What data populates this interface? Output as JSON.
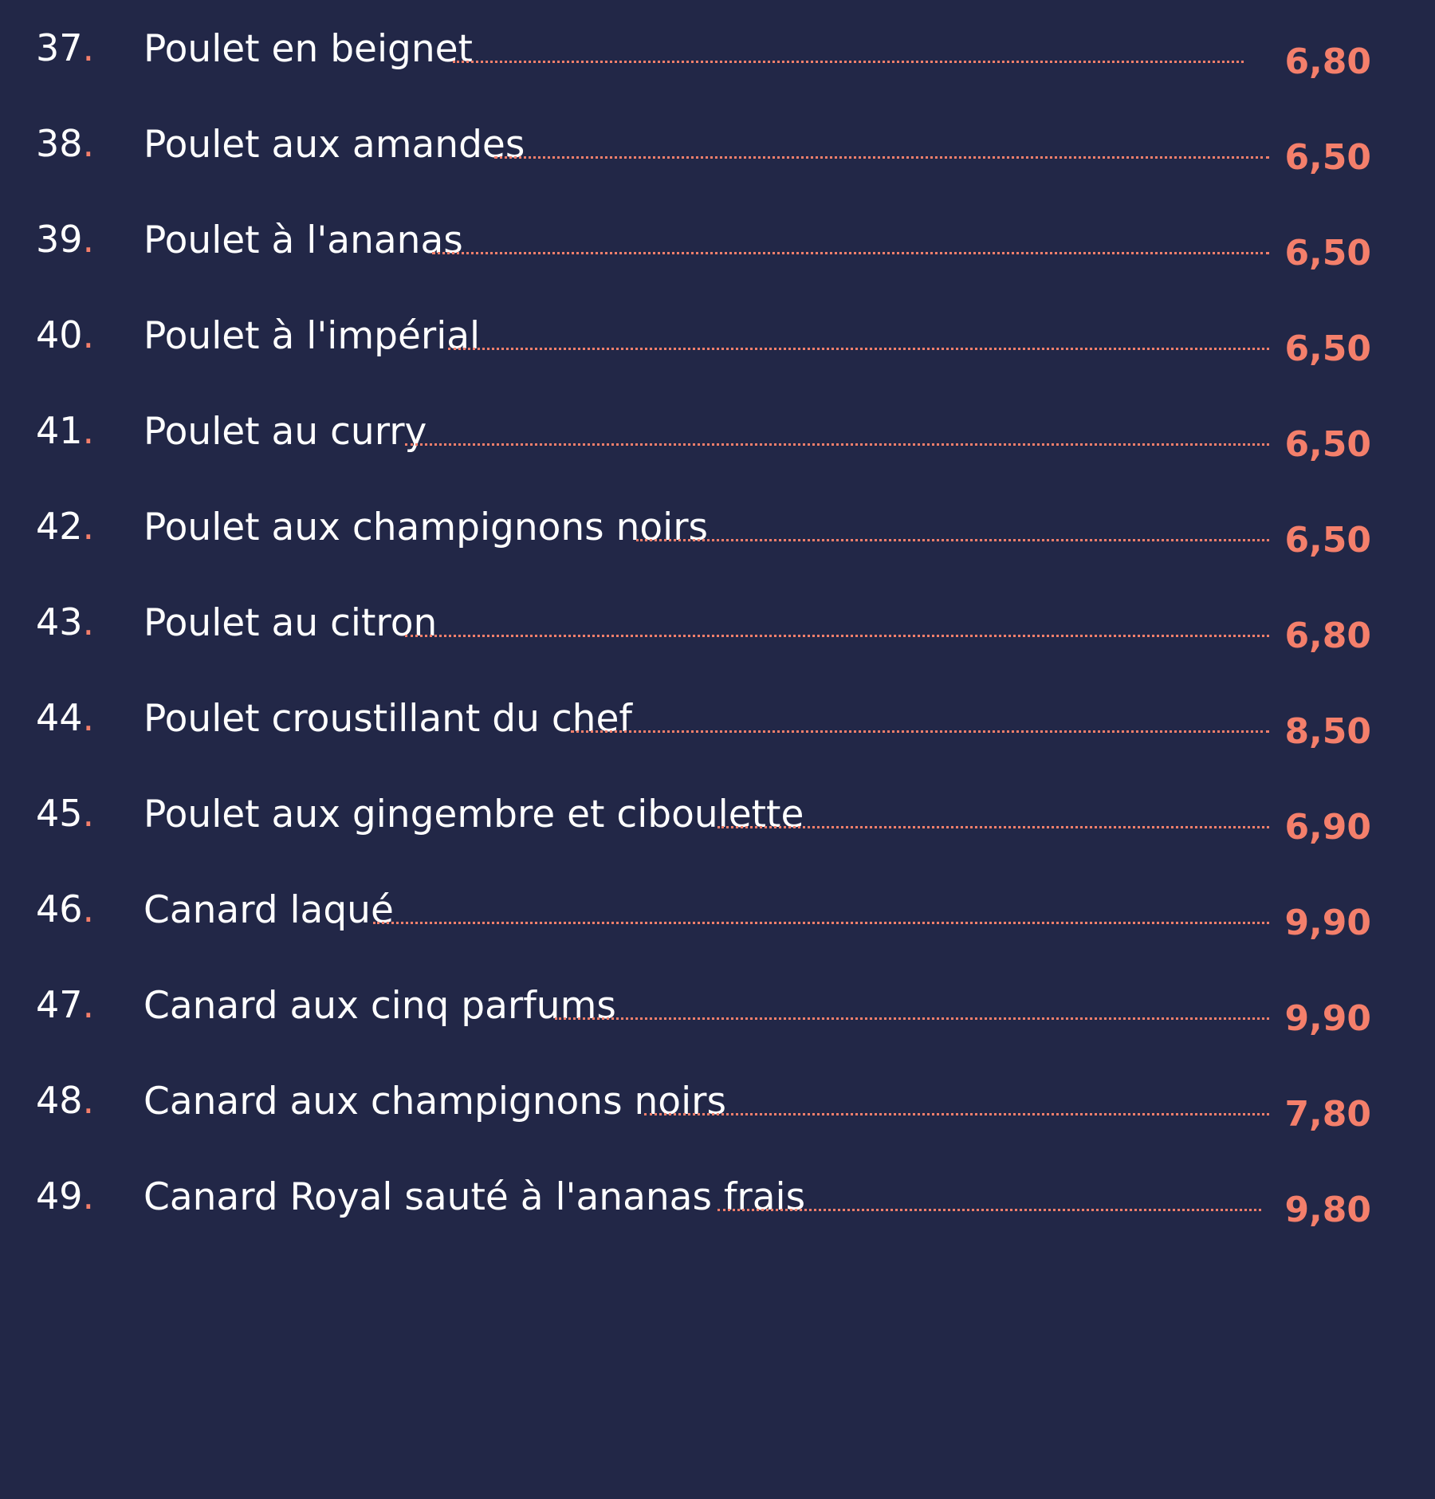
{
  "menu": {
    "accent_color": "#f47f6b",
    "background_color": "#222747",
    "items": [
      {
        "number": "37",
        "dot": ".",
        "name": "Poulet en beignet",
        "price": "6,80"
      },
      {
        "number": "38",
        "dot": ".",
        "name": "Poulet aux amandes",
        "price": "6,50"
      },
      {
        "number": "39",
        "dot": ".",
        "name": "Poulet à l'ananas",
        "price": "6,50"
      },
      {
        "number": "40",
        "dot": ".",
        "name": "Poulet à l'impérial",
        "price": "6,50"
      },
      {
        "number": "41",
        "dot": ".",
        "name": "Poulet au curry",
        "price": "6,50"
      },
      {
        "number": "42",
        "dot": ".",
        "name": "Poulet aux champignons noirs",
        "price": "6,50"
      },
      {
        "number": "43",
        "dot": ".",
        "name": "Poulet au citron",
        "price": "6,80"
      },
      {
        "number": "44",
        "dot": ".",
        "name": "Poulet croustillant du chef",
        "price": "8,50"
      },
      {
        "number": "45",
        "dot": ".",
        "name": "Poulet aux gingembre et ciboulette",
        "price": "6,90"
      },
      {
        "number": "46",
        "dot": ".",
        "name": "Canard laqué",
        "price": "9,90"
      },
      {
        "number": "47",
        "dot": ".",
        "name": "Canard aux cinq parfums",
        "price": "9,90"
      },
      {
        "number": "48",
        "dot": ".",
        "name": "Canard aux champignons noirs",
        "price": "7,80"
      },
      {
        "number": "49",
        "dot": ".",
        "name": "Canard Royal sauté à l'ananas frais",
        "price": "9,80"
      }
    ]
  }
}
